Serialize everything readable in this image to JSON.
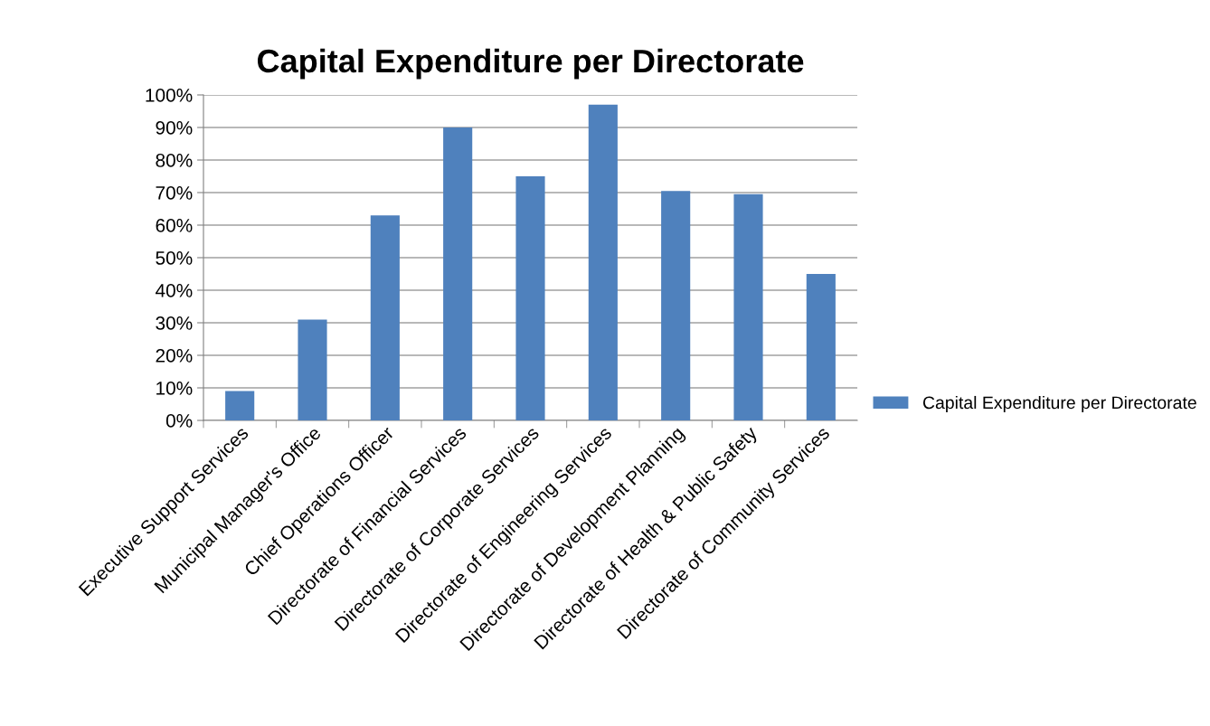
{
  "chart_data": {
    "type": "bar",
    "title": "Capital Expenditure per Directorate",
    "categories": [
      "Executive Support Services",
      "Municipal Manager's Office",
      "Chief Operations Officer",
      "Directorate of Financial Services",
      "Directorate of Corporate Services",
      "Directorate of Engineering Services",
      "Directorate of Development Planning",
      "Directorate of Health & Public Safety",
      "Directorate of Community Services"
    ],
    "series": [
      {
        "name": "Capital Expenditure per Directorate",
        "color": "#4f81bd",
        "values": [
          9,
          31,
          63,
          90,
          75,
          97,
          70.5,
          69.5,
          45
        ]
      }
    ],
    "ylim": [
      0,
      100
    ],
    "yticks": [
      {
        "value": 0,
        "label": "0%"
      },
      {
        "value": 10,
        "label": "10%"
      },
      {
        "value": 20,
        "label": "20%"
      },
      {
        "value": 30,
        "label": "30%"
      },
      {
        "value": 40,
        "label": "40%"
      },
      {
        "value": 50,
        "label": "50%"
      },
      {
        "value": 60,
        "label": "60%"
      },
      {
        "value": 70,
        "label": "70%"
      },
      {
        "value": 80,
        "label": "80%"
      },
      {
        "value": 90,
        "label": "90%"
      },
      {
        "value": 100,
        "label": "100%"
      }
    ],
    "grid": "y",
    "legend": "right"
  }
}
